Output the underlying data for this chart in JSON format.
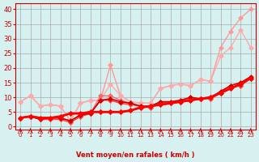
{
  "bg_color": "#d7f0f0",
  "grid_color": "#aaaaaa",
  "xlabel": "Vent moyen/en rafales ( km/h )",
  "x_ticks": [
    0,
    1,
    2,
    3,
    4,
    5,
    6,
    7,
    8,
    9,
    10,
    11,
    12,
    13,
    14,
    15,
    16,
    17,
    18,
    19,
    20,
    21,
    22,
    23
  ],
  "y_ticks": [
    0,
    5,
    10,
    15,
    20,
    25,
    30,
    35,
    40
  ],
  "ylim": [
    -1,
    42
  ],
  "xlim": [
    -0.5,
    23.5
  ],
  "series": [
    {
      "color": "#ff9999",
      "alpha": 1.0,
      "lw": 1.0,
      "marker": "D",
      "ms": 3,
      "x": [
        0,
        1,
        2,
        3,
        4,
        5,
        6,
        7,
        8,
        9,
        10,
        11,
        12,
        13,
        14,
        15,
        16,
        17,
        18,
        19,
        20,
        21,
        22,
        23
      ],
      "y": [
        8.5,
        10.5,
        7.0,
        7.5,
        7.0,
        2.0,
        8.0,
        9.0,
        9.0,
        21.0,
        10.5,
        8.5,
        8.0,
        8.0,
        13.0,
        14.0,
        14.5,
        14.0,
        16.0,
        15.5,
        27.0,
        32.5,
        37.0,
        40.0
      ]
    },
    {
      "color": "#ffaaaa",
      "alpha": 1.0,
      "lw": 1.0,
      "marker": "D",
      "ms": 3,
      "x": [
        0,
        1,
        2,
        3,
        4,
        5,
        6,
        7,
        8,
        9,
        10,
        11,
        12,
        13,
        14,
        15,
        16,
        17,
        18,
        19,
        20,
        21,
        22,
        23
      ],
      "y": [
        8.5,
        10.5,
        7.0,
        7.5,
        7.0,
        2.0,
        8.0,
        9.0,
        9.0,
        14.5,
        10.5,
        8.5,
        8.0,
        8.0,
        13.0,
        14.0,
        14.5,
        14.0,
        16.0,
        15.5,
        24.0,
        27.0,
        33.0,
        27.0
      ]
    },
    {
      "color": "#ff6666",
      "alpha": 1.0,
      "lw": 1.0,
      "marker": "D",
      "ms": 3,
      "x": [
        0,
        1,
        2,
        3,
        4,
        5,
        6,
        7,
        8,
        9,
        10,
        11,
        12,
        13,
        14,
        15,
        16,
        17,
        18,
        19,
        20,
        21,
        22,
        23
      ],
      "y": [
        3.0,
        3.5,
        2.5,
        2.5,
        2.5,
        1.5,
        3.5,
        4.5,
        10.5,
        10.5,
        9.0,
        8.0,
        7.0,
        6.5,
        8.5,
        8.0,
        8.5,
        9.5,
        9.5,
        9.5,
        11.5,
        13.5,
        14.0,
        16.5
      ]
    },
    {
      "color": "#ff4444",
      "alpha": 1.0,
      "lw": 1.2,
      "marker": "D",
      "ms": 3,
      "x": [
        0,
        1,
        2,
        3,
        4,
        5,
        6,
        7,
        8,
        9,
        10,
        11,
        12,
        13,
        14,
        15,
        16,
        17,
        18,
        19,
        20,
        21,
        22,
        23
      ],
      "y": [
        3.0,
        3.5,
        2.5,
        2.5,
        2.5,
        1.5,
        3.5,
        4.5,
        9.0,
        9.0,
        8.0,
        7.5,
        7.0,
        6.5,
        8.5,
        8.0,
        8.5,
        9.5,
        9.5,
        9.5,
        11.5,
        13.5,
        14.0,
        16.5
      ]
    },
    {
      "color": "#cc0000",
      "alpha": 1.0,
      "lw": 1.2,
      "marker": "D",
      "ms": 3,
      "x": [
        0,
        1,
        2,
        3,
        4,
        5,
        6,
        7,
        8,
        9,
        10,
        11,
        12,
        13,
        14,
        15,
        16,
        17,
        18,
        19,
        20,
        21,
        22,
        23
      ],
      "y": [
        3.0,
        3.5,
        2.5,
        3.0,
        3.0,
        2.0,
        4.0,
        4.5,
        9.0,
        9.5,
        8.5,
        8.0,
        7.0,
        7.0,
        8.5,
        8.5,
        9.0,
        10.0,
        9.5,
        10.0,
        12.0,
        14.0,
        15.0,
        17.0
      ]
    },
    {
      "color": "#dd2222",
      "alpha": 1.0,
      "lw": 1.5,
      "marker": "D",
      "ms": 3,
      "x": [
        0,
        1,
        2,
        3,
        4,
        5,
        6,
        7,
        8,
        9,
        10,
        11,
        12,
        13,
        14,
        15,
        16,
        17,
        18,
        19,
        20,
        21,
        22,
        23
      ],
      "y": [
        3.0,
        3.5,
        3.0,
        3.0,
        3.5,
        4.5,
        4.5,
        5.0,
        5.0,
        5.0,
        5.0,
        5.5,
        6.5,
        7.0,
        7.5,
        8.0,
        8.5,
        9.0,
        9.5,
        10.0,
        11.5,
        13.0,
        14.5,
        16.5
      ]
    },
    {
      "color": "#ff0000",
      "alpha": 1.0,
      "lw": 2.0,
      "marker": "D",
      "ms": 3,
      "x": [
        0,
        1,
        2,
        3,
        4,
        5,
        6,
        7,
        8,
        9,
        10,
        11,
        12,
        13,
        14,
        15,
        16,
        17,
        18,
        19,
        20,
        21,
        22,
        23
      ],
      "y": [
        3.0,
        3.5,
        3.0,
        3.0,
        3.5,
        4.5,
        4.5,
        5.0,
        5.0,
        5.0,
        5.0,
        5.5,
        6.5,
        7.0,
        7.5,
        8.0,
        8.5,
        9.0,
        9.5,
        10.0,
        11.5,
        13.0,
        14.5,
        16.5
      ]
    }
  ],
  "wind_arrows": {
    "x": [
      0,
      1,
      2,
      3,
      4,
      5,
      6,
      7,
      8,
      9,
      10,
      11,
      12,
      13,
      14,
      15,
      16,
      17,
      18,
      19,
      20,
      21,
      22,
      23
    ],
    "angles": [
      45,
      45,
      90,
      90,
      90,
      90,
      90,
      90,
      90,
      90,
      90,
      90,
      90,
      90,
      90,
      45,
      45,
      45,
      45,
      45,
      45,
      45,
      45,
      45
    ]
  }
}
